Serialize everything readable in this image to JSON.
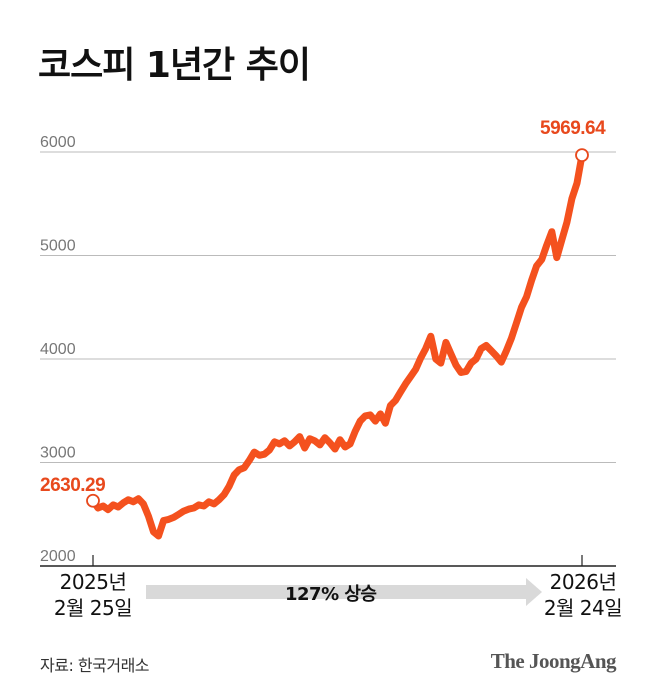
{
  "title": "코스피 1년간 추이",
  "source": "자료: 한국거래소",
  "logo": "The JoongAng",
  "start_label": {
    "value": "2630.29",
    "date_line1": "2025년",
    "date_line2": "2월 25일"
  },
  "end_label": {
    "value": "5969.64",
    "date_line1": "2026년",
    "date_line2": "2월 24일"
  },
  "change_label": "127% 상승",
  "colors": {
    "line": "#f4511e",
    "label": "#e8491d",
    "grid": "#bbbbbb",
    "axis": "#222222",
    "arrow": "#d9d9d9"
  },
  "chart_data": {
    "type": "line",
    "title": "코스피 1년간 추이",
    "xlabel": "",
    "ylabel": "",
    "ylim": [
      2000,
      6000
    ],
    "yticks": [
      2000,
      3000,
      4000,
      5000,
      6000
    ],
    "xticks": [
      "2025년 2월 25일",
      "2026년 2월 24일"
    ],
    "grid": true,
    "annotations": [
      "2630.29",
      "5969.64",
      "127% 상승"
    ],
    "series": [
      {
        "name": "KOSPI",
        "x_start": "2025-02-25",
        "x_end": "2026-02-24",
        "values": [
          2630.29,
          2560,
          2580,
          2545,
          2590,
          2570,
          2610,
          2640,
          2620,
          2650,
          2600,
          2480,
          2330,
          2290,
          2440,
          2450,
          2470,
          2500,
          2530,
          2550,
          2560,
          2590,
          2580,
          2620,
          2600,
          2640,
          2690,
          2770,
          2880,
          2930,
          2950,
          3020,
          3100,
          3070,
          3080,
          3120,
          3200,
          3180,
          3210,
          3160,
          3200,
          3250,
          3140,
          3230,
          3210,
          3170,
          3240,
          3190,
          3130,
          3220,
          3150,
          3180,
          3300,
          3400,
          3450,
          3460,
          3400,
          3470,
          3380,
          3550,
          3600,
          3680,
          3760,
          3830,
          3900,
          4010,
          4100,
          4220,
          4000,
          3960,
          4160,
          4050,
          3940,
          3870,
          3880,
          3960,
          4000,
          4100,
          4130,
          4080,
          4030,
          3970,
          4080,
          4200,
          4350,
          4500,
          4600,
          4760,
          4900,
          4960,
          5100,
          5230,
          4980,
          5150,
          5320,
          5550,
          5700,
          5969.64
        ]
      }
    ]
  }
}
